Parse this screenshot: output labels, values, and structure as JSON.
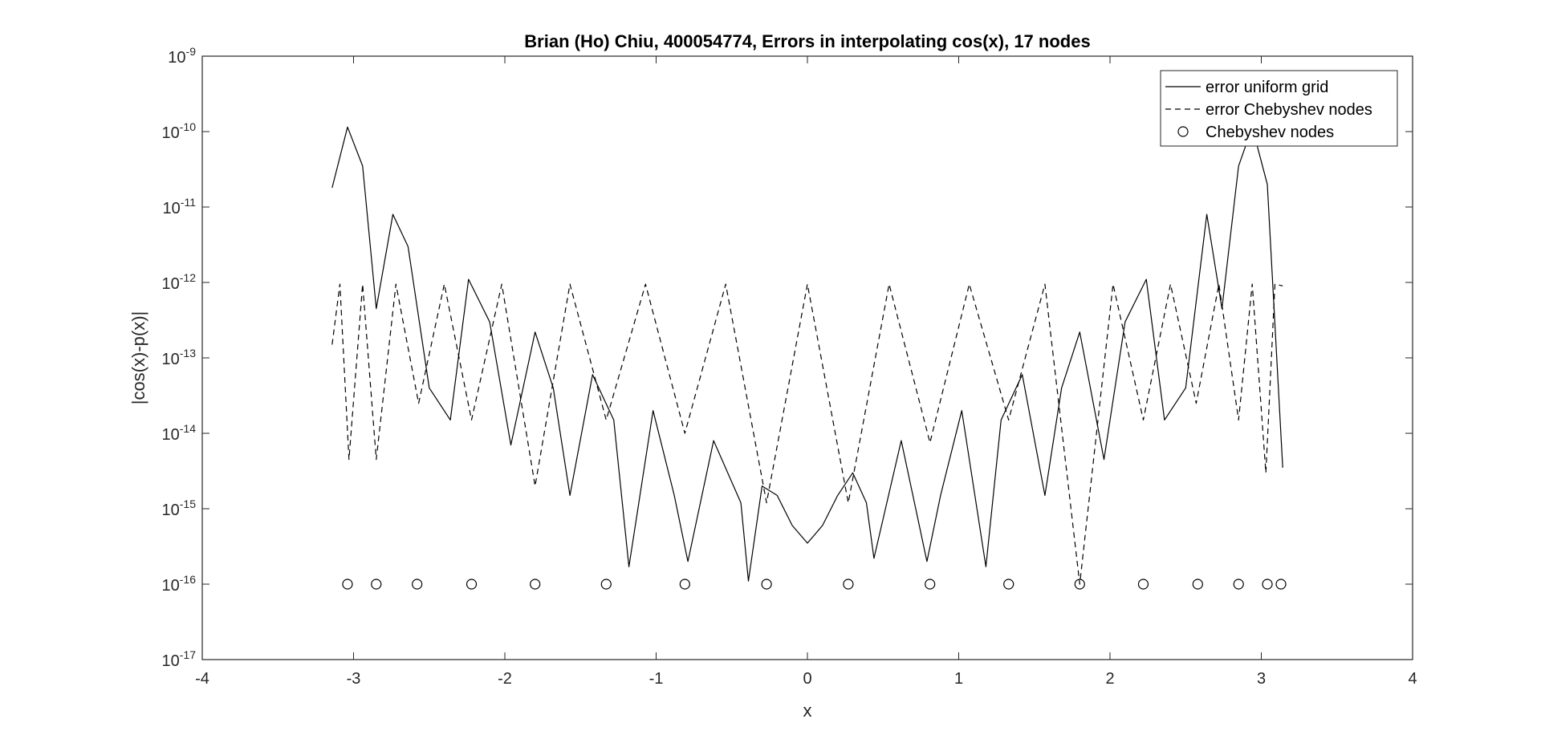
{
  "chart_data": {
    "type": "line",
    "title": "Brian (Ho) Chiu, 400054774, Errors in interpolating cos(x), 17 nodes",
    "xlabel": "x",
    "ylabel": "|cos(x)-p(x)|",
    "xlim": [
      -4,
      4
    ],
    "ylim_exp": [
      -17,
      -9
    ],
    "yscale": "log",
    "x_ticks": [
      "-4",
      "-3",
      "-2",
      "-1",
      "0",
      "1",
      "2",
      "3",
      "4"
    ],
    "y_tick_base": "10",
    "y_tick_exponents": [
      "-17",
      "-16",
      "-15",
      "-14",
      "-13",
      "-12",
      "-11",
      "-10",
      "-9"
    ],
    "grid": false,
    "legend_position": "top-right",
    "series": [
      {
        "name": "error uniform grid",
        "style": "solid",
        "color": "#000000",
        "x": [
          -3.1416,
          -3.04,
          -2.94,
          -2.85,
          -2.74,
          -2.64,
          -2.5,
          -2.36,
          -2.24,
          -2.1,
          -1.96,
          -1.8,
          -1.68,
          -1.57,
          -1.42,
          -1.28,
          -1.18,
          -1.02,
          -0.88,
          -0.79,
          -0.62,
          -0.44,
          -0.39,
          -0.3,
          -0.2,
          -0.1,
          0.0,
          0.1,
          0.2,
          0.3,
          0.39,
          0.44,
          0.62,
          0.79,
          0.88,
          1.02,
          1.18,
          1.28,
          1.42,
          1.57,
          1.68,
          1.8,
          1.96,
          2.1,
          2.24,
          2.36,
          2.5,
          2.64,
          2.74,
          2.85,
          2.94,
          3.04,
          3.1416
        ],
        "y": [
          1.8e-11,
          1.15e-10,
          3.5e-11,
          4.5e-13,
          8e-12,
          3e-12,
          4e-14,
          1.5e-14,
          1.1e-12,
          3e-13,
          7e-15,
          2.2e-13,
          4e-14,
          1.5e-15,
          6e-14,
          1.5e-14,
          1.7e-16,
          2e-14,
          1.5e-15,
          2e-16,
          8e-15,
          1.2e-15,
          1.1e-16,
          2e-15,
          1.5e-15,
          6e-16,
          3.5e-16,
          6e-16,
          1.5e-15,
          3e-15,
          1.2e-15,
          2.2e-16,
          8e-15,
          2e-16,
          1.5e-15,
          2e-14,
          1.7e-16,
          1.5e-14,
          6e-14,
          1.5e-15,
          4e-14,
          2.2e-13,
          4.5e-15,
          3e-13,
          1.1e-12,
          1.5e-14,
          4e-14,
          8e-12,
          4.5e-13,
          3.5e-11,
          1.15e-10,
          2e-11,
          3.5e-15
        ]
      },
      {
        "name": "error Chebyshev nodes",
        "style": "dashed",
        "color": "#000000",
        "x": [
          -3.1416,
          -3.09,
          -3.03,
          -2.94,
          -2.85,
          -2.72,
          -2.57,
          -2.4,
          -2.22,
          -2.02,
          -1.8,
          -1.57,
          -1.33,
          -1.07,
          -0.81,
          -0.54,
          -0.27,
          0.0,
          0.27,
          0.54,
          0.81,
          1.07,
          1.33,
          1.57,
          1.8,
          2.02,
          2.22,
          2.4,
          2.57,
          2.72,
          2.85,
          2.94,
          3.03,
          3.09,
          3.1416
        ],
        "y": [
          1.5e-13,
          9.5e-13,
          4.5e-15,
          9.5e-13,
          4.5e-15,
          9.5e-13,
          2.5e-14,
          9.5e-13,
          1.5e-14,
          9.5e-13,
          2e-15,
          9.5e-13,
          1.5e-14,
          9.5e-13,
          1e-14,
          9.5e-13,
          1.2e-15,
          9.5e-13,
          1.2e-15,
          9.5e-13,
          7.5e-15,
          9.5e-13,
          1.5e-14,
          9.5e-13,
          1e-16,
          9.5e-13,
          1.5e-14,
          9.5e-13,
          2.5e-14,
          9.5e-13,
          1.5e-14,
          9.5e-13,
          3e-15,
          9.5e-13,
          9e-13
        ]
      },
      {
        "name": "Chebyshev nodes",
        "style": "circle-markers",
        "color": "#000000",
        "x": [
          -3.04,
          -2.85,
          -2.58,
          -2.22,
          -1.8,
          -1.33,
          -0.81,
          -0.27,
          0.27,
          0.81,
          1.33,
          1.8,
          2.22,
          2.58,
          2.85,
          3.04,
          3.13
        ],
        "y": [
          1e-16,
          1e-16,
          1e-16,
          1e-16,
          1e-16,
          1e-16,
          1e-16,
          1e-16,
          1e-16,
          1e-16,
          1e-16,
          1e-16,
          1e-16,
          1e-16,
          1e-16,
          1e-16,
          1e-16
        ]
      }
    ]
  }
}
